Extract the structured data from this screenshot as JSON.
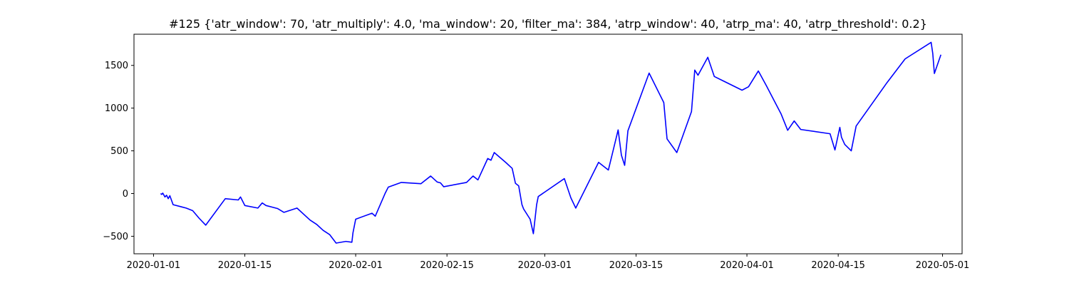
{
  "chart_data": {
    "type": "line",
    "title": "#125 {'atr_window': 70, 'atr_multiply': 4.0, 'ma_window': 20, 'filter_ma': 384, 'atrp_window': 40, 'atrp_ma': 40, 'atrp_threshold': 0.2}",
    "xlabel": "",
    "ylabel": "",
    "x_axis": "date",
    "xlim": [
      "2019-12-29",
      "2020-05-04"
    ],
    "ylim": [
      -705,
      1865
    ],
    "grid": false,
    "line_color": "#0000ff",
    "x_ticks": [
      "2020-01-01",
      "2020-01-15",
      "2020-02-01",
      "2020-02-15",
      "2020-03-01",
      "2020-03-15",
      "2020-04-01",
      "2020-04-15",
      "2020-05-01"
    ],
    "x_tick_labels": [
      "2020-01-01",
      "2020-01-15",
      "2020-02-01",
      "2020-02-15",
      "2020-03-01",
      "2020-03-15",
      "2020-04-01",
      "2020-04-15",
      "2020-05-01"
    ],
    "y_ticks": [
      -500,
      0,
      500,
      1000,
      1500
    ],
    "y_tick_labels": [
      "−500",
      "0",
      "500",
      "1000",
      "1500"
    ],
    "series": [
      {
        "points": [
          [
            "2020-01-02 02:00",
            0
          ],
          [
            "2020-01-02 06:00",
            -10
          ],
          [
            "2020-01-02 10:00",
            5
          ],
          [
            "2020-01-02 18:00",
            -40
          ],
          [
            "2020-01-03 00:00",
            -20
          ],
          [
            "2020-01-03 06:00",
            -60
          ],
          [
            "2020-01-03 12:00",
            -25
          ],
          [
            "2020-01-04 00:00",
            -130
          ],
          [
            "2020-01-06 00:00",
            -170
          ],
          [
            "2020-01-07 00:00",
            -200
          ],
          [
            "2020-01-08 00:00",
            -290
          ],
          [
            "2020-01-09 00:00",
            -370
          ],
          [
            "2020-01-12 00:00",
            -60
          ],
          [
            "2020-01-14 00:00",
            -75
          ],
          [
            "2020-01-14 08:00",
            -40
          ],
          [
            "2020-01-15 00:00",
            -140
          ],
          [
            "2020-01-17 00:00",
            -170
          ],
          [
            "2020-01-17 16:00",
            -110
          ],
          [
            "2020-01-18 06:00",
            -140
          ],
          [
            "2020-01-20 00:00",
            -175
          ],
          [
            "2020-01-21 00:00",
            -220
          ],
          [
            "2020-01-23 00:00",
            -170
          ],
          [
            "2020-01-25 00:00",
            -310
          ],
          [
            "2020-01-26 00:00",
            -360
          ],
          [
            "2020-01-27 00:00",
            -430
          ],
          [
            "2020-01-28 00:00",
            -480
          ],
          [
            "2020-01-29 00:00",
            -580
          ],
          [
            "2020-01-30 12:00",
            -560
          ],
          [
            "2020-01-31 10:00",
            -570
          ],
          [
            "2020-01-31 14:00",
            -460
          ],
          [
            "2020-02-01 00:00",
            -300
          ],
          [
            "2020-02-03 12:00",
            -230
          ],
          [
            "2020-02-04 00:00",
            -265
          ],
          [
            "2020-02-05 12:00",
            0
          ],
          [
            "2020-02-06 00:00",
            75
          ],
          [
            "2020-02-08 00:00",
            130
          ],
          [
            "2020-02-11 00:00",
            115
          ],
          [
            "2020-02-12 12:00",
            205
          ],
          [
            "2020-02-13 12:00",
            135
          ],
          [
            "2020-02-14 00:00",
            125
          ],
          [
            "2020-02-14 12:00",
            80
          ],
          [
            "2020-02-18 00:00",
            130
          ],
          [
            "2020-02-19 00:00",
            205
          ],
          [
            "2020-02-19 18:00",
            160
          ],
          [
            "2020-02-21 06:00",
            410
          ],
          [
            "2020-02-21 18:00",
            390
          ],
          [
            "2020-02-22 06:00",
            480
          ],
          [
            "2020-02-24 00:00",
            365
          ],
          [
            "2020-02-25 00:00",
            295
          ],
          [
            "2020-02-25 12:00",
            120
          ],
          [
            "2020-02-26 00:00",
            90
          ],
          [
            "2020-02-26 12:00",
            -130
          ],
          [
            "2020-02-26 18:00",
            -180
          ],
          [
            "2020-02-27 12:00",
            -270
          ],
          [
            "2020-02-27 18:00",
            -300
          ],
          [
            "2020-02-28 06:00",
            -470
          ],
          [
            "2020-02-28 18:00",
            -130
          ],
          [
            "2020-02-29 00:00",
            -35
          ],
          [
            "2020-03-04 00:00",
            175
          ],
          [
            "2020-03-05 00:00",
            -50
          ],
          [
            "2020-03-05 18:00",
            -170
          ],
          [
            "2020-03-09 06:00",
            365
          ],
          [
            "2020-03-10 18:00",
            275
          ],
          [
            "2020-03-11 12:00",
            510
          ],
          [
            "2020-03-12 06:00",
            745
          ],
          [
            "2020-03-12 18:00",
            450
          ],
          [
            "2020-03-13 06:00",
            330
          ],
          [
            "2020-03-13 18:00",
            735
          ],
          [
            "2020-03-17 00:00",
            1410
          ],
          [
            "2020-03-19 06:00",
            1065
          ],
          [
            "2020-03-19 18:00",
            640
          ],
          [
            "2020-03-21 06:00",
            480
          ],
          [
            "2020-03-23 12:00",
            960
          ],
          [
            "2020-03-24 00:00",
            1445
          ],
          [
            "2020-03-24 12:00",
            1385
          ],
          [
            "2020-03-26 00:00",
            1595
          ],
          [
            "2020-03-27 00:00",
            1370
          ],
          [
            "2020-03-31 06:00",
            1210
          ],
          [
            "2020-04-01 06:00",
            1250
          ],
          [
            "2020-04-02 18:00",
            1435
          ],
          [
            "2020-04-04 00:00",
            1260
          ],
          [
            "2020-04-06 06:00",
            930
          ],
          [
            "2020-04-07 06:00",
            740
          ],
          [
            "2020-04-08 06:00",
            850
          ],
          [
            "2020-04-09 06:00",
            750
          ],
          [
            "2020-04-13 18:00",
            700
          ],
          [
            "2020-04-14 12:00",
            510
          ],
          [
            "2020-04-15 06:00",
            775
          ],
          [
            "2020-04-15 12:00",
            660
          ],
          [
            "2020-04-16 00:00",
            575
          ],
          [
            "2020-04-17 00:00",
            500
          ],
          [
            "2020-04-17 18:00",
            790
          ],
          [
            "2020-04-22 12:00",
            1300
          ],
          [
            "2020-04-25 06:00",
            1575
          ],
          [
            "2020-04-25 18:00",
            1600
          ],
          [
            "2020-04-29 06:00",
            1770
          ],
          [
            "2020-04-29 12:00",
            1640
          ],
          [
            "2020-04-29 18:00",
            1405
          ],
          [
            "2020-04-30 18:00",
            1625
          ]
        ]
      }
    ]
  }
}
